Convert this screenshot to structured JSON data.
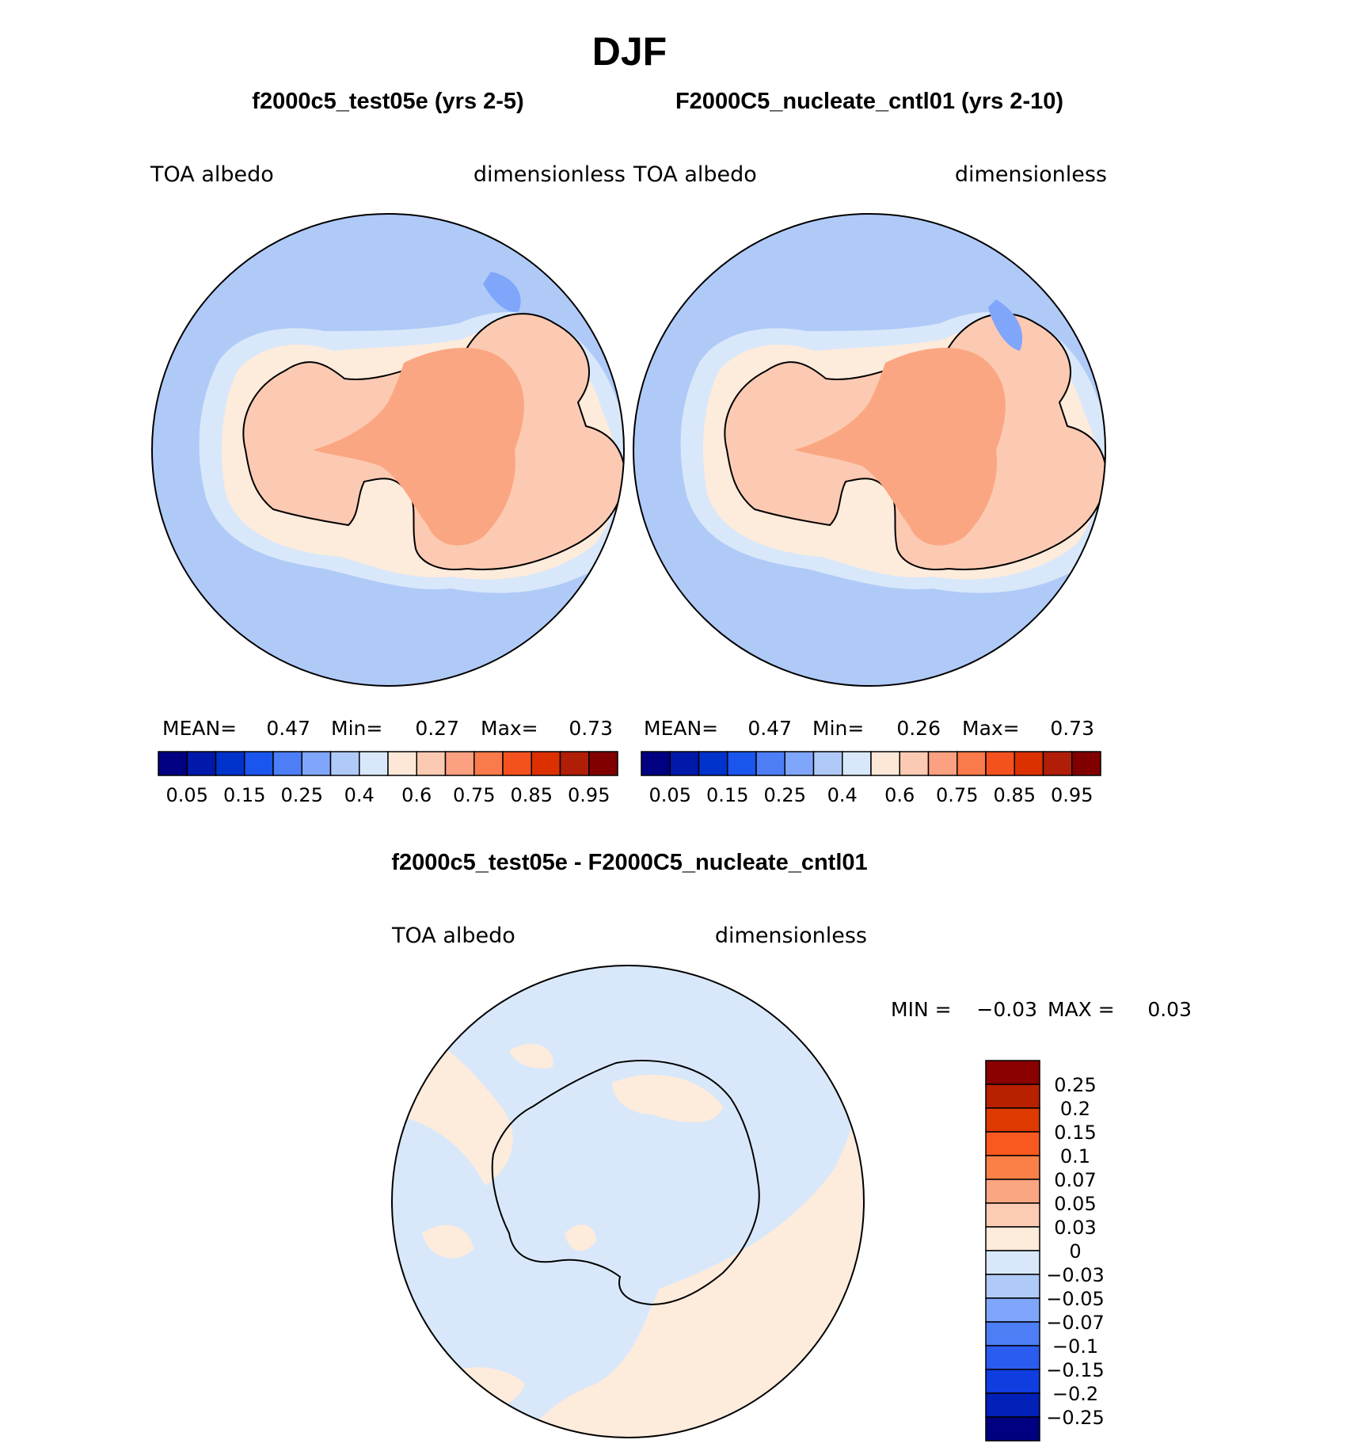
{
  "chart_data": {
    "type": "heatmap",
    "season": "DJF",
    "variable": "TOA albedo",
    "units": "dimensionless",
    "panels": [
      {
        "id": "test",
        "title": "f2000c5_test05e (yrs 2-5)",
        "left_label": "TOA albedo",
        "right_label": "dimensionless",
        "stats": {
          "mean_label": "MEAN=",
          "mean": "0.47",
          "min_label": "Min=",
          "min": "0.27",
          "max_label": "Max=",
          "max": "0.73"
        }
      },
      {
        "id": "control",
        "title": "F2000C5_nucleate_cntl01 (yrs 2-10)",
        "left_label": "TOA albedo",
        "right_label": "dimensionless",
        "stats": {
          "mean_label": "MEAN=",
          "mean": "0.47",
          "min_label": "Min=",
          "min": "0.26",
          "max_label": "Max=",
          "max": "0.73"
        }
      }
    ],
    "abs_colorbar": {
      "colors": [
        "#000080",
        "#0019aa",
        "#0033cc",
        "#1a55ee",
        "#4d7ef5",
        "#80a6fb",
        "#b0caf8",
        "#d8e8fa",
        "#fde8d8",
        "#fccab2",
        "#fba080",
        "#f97a4a",
        "#f4511e",
        "#dc3000",
        "#b01e08",
        "#800000"
      ],
      "tick_labels": [
        "0.05",
        "0.15",
        "0.25",
        "0.4",
        "0.6",
        "0.75",
        "0.85",
        "0.95"
      ]
    },
    "difference": {
      "title": "f2000c5_test05e - F2000C5_nucleate_cntl01",
      "left_label": "TOA albedo",
      "right_label": "dimensionless",
      "min_label": "MIN =",
      "min": "−0.03",
      "max_label": "MAX =",
      "max": "0.03"
    },
    "diff_colorbar": {
      "colors_top_to_bottom": [
        "#8b0000",
        "#b82000",
        "#de3a00",
        "#f9581e",
        "#fb8048",
        "#fba682",
        "#fccbb4",
        "#fdebdc",
        "#d8e8fa",
        "#b0caf8",
        "#80a6fb",
        "#4d7ef5",
        "#2b5cf0",
        "#0f3de0",
        "#0020b8",
        "#000080"
      ],
      "tick_labels": [
        "0.25",
        "0.2",
        "0.15",
        "0.1",
        "0.07",
        "0.05",
        "0.03",
        "0",
        "−0.03",
        "−0.05",
        "−0.07",
        "−0.1",
        "−0.15",
        "−0.2",
        "−0.25"
      ]
    }
  }
}
